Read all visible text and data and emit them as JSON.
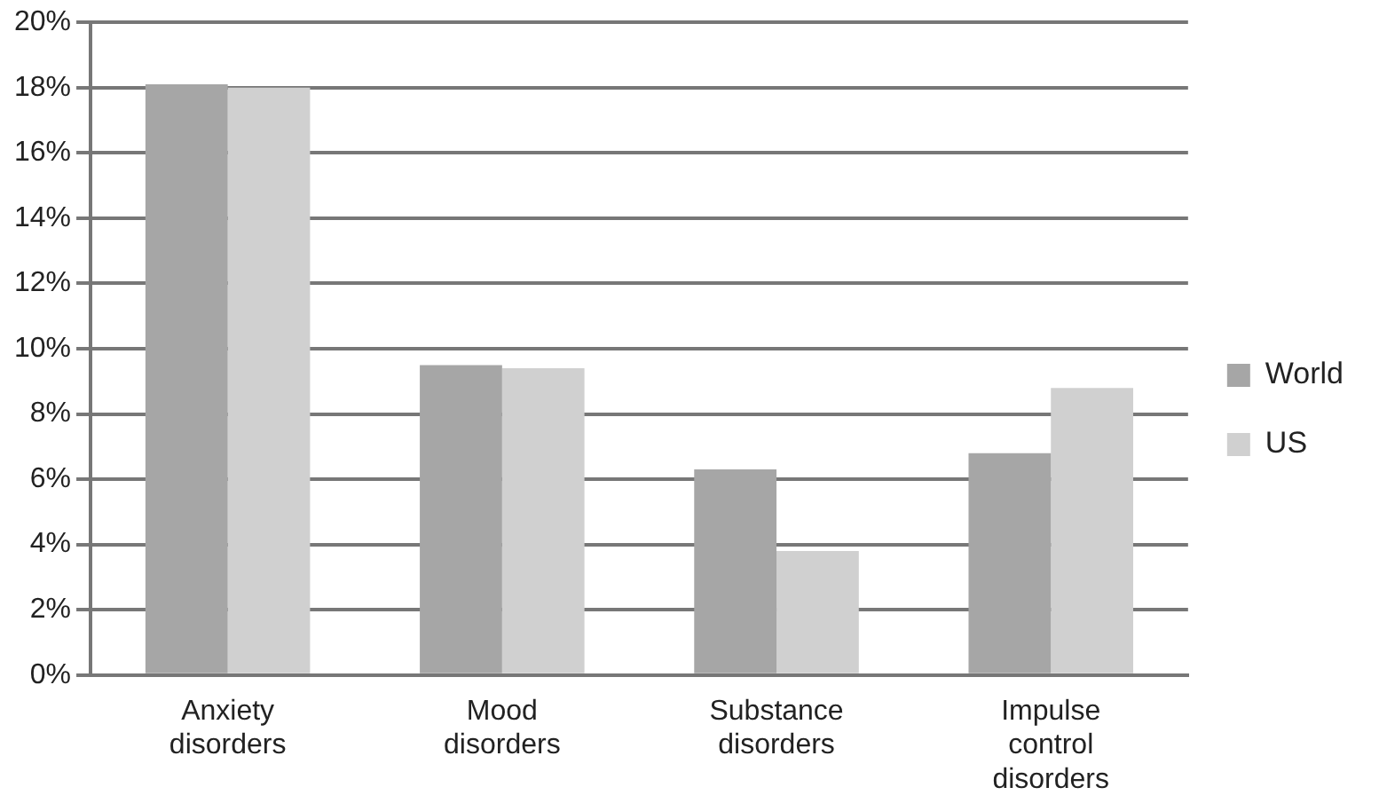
{
  "chart_data": {
    "type": "bar",
    "categories": [
      "Anxiety disorders",
      "Mood disorders",
      "Substance disorders",
      "Impulse control disorders"
    ],
    "series": [
      {
        "name": "World",
        "color": "#a6a6a6",
        "values": [
          18.1,
          9.5,
          6.3,
          6.8
        ]
      },
      {
        "name": "US",
        "color": "#d0d0d0",
        "values": [
          18.0,
          9.4,
          3.8,
          8.8
        ]
      }
    ],
    "ylim": [
      0,
      20
    ],
    "yticks": [
      {
        "value": 0,
        "label": "0%"
      },
      {
        "value": 2,
        "label": "2%"
      },
      {
        "value": 4,
        "label": "4%"
      },
      {
        "value": 6,
        "label": "6%"
      },
      {
        "value": 8,
        "label": "8%"
      },
      {
        "value": 10,
        "label": "10%"
      },
      {
        "value": 12,
        "label": "12%"
      },
      {
        "value": 14,
        "label": "14%"
      },
      {
        "value": 16,
        "label": "16%"
      },
      {
        "value": 18,
        "label": "18%"
      },
      {
        "value": 20,
        "label": "20%"
      }
    ],
    "grid": "y",
    "legend": "right"
  }
}
